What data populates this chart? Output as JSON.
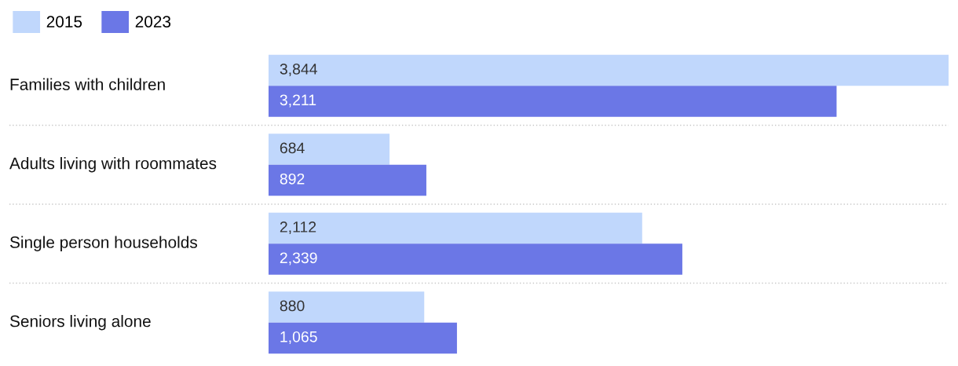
{
  "chart_data": {
    "type": "bar",
    "orientation": "horizontal",
    "categories": [
      "Families with children",
      "Adults living with roommates",
      "Single person households",
      "Seniors living alone"
    ],
    "series": [
      {
        "name": "2015",
        "color": "#c0d7fc",
        "values": [
          3844,
          684,
          2112,
          880
        ],
        "value_labels": [
          "3,844",
          "684",
          "2,112",
          "880"
        ]
      },
      {
        "name": "2023",
        "color": "#6b77e6",
        "values": [
          3211,
          892,
          2339,
          1065
        ],
        "value_labels": [
          "3,211",
          "892",
          "2,339",
          "1,065"
        ]
      }
    ],
    "legend": "top left"
  }
}
